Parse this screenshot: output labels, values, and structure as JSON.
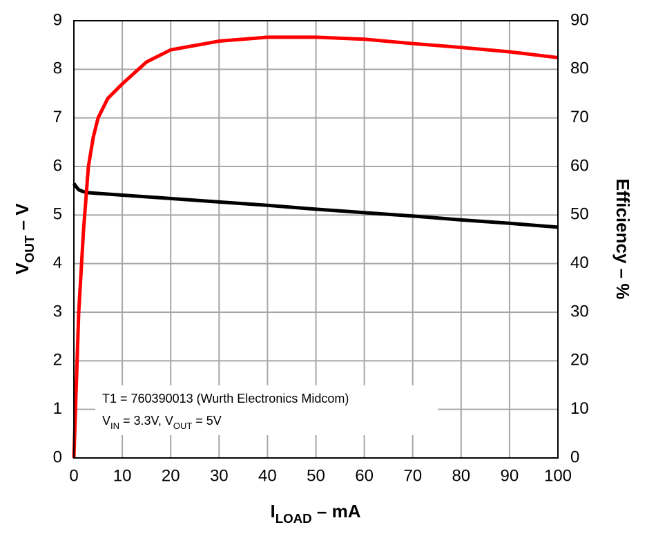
{
  "chart_data": {
    "type": "line",
    "xlabel": [
      {
        "text": "I"
      },
      {
        "text": "LOAD",
        "sub": true
      },
      {
        "text": " – mA"
      }
    ],
    "ylabel": [
      {
        "text": "V"
      },
      {
        "text": "OUT",
        "sub": true
      },
      {
        "text": " – V"
      }
    ],
    "y2label": [
      {
        "text": "Efficiency – %"
      }
    ],
    "annotations": [
      [
        {
          "text": "T1 = 760390013 (Wurth Electronics Midcom)"
        }
      ],
      [
        {
          "text": "V"
        },
        {
          "text": "IN",
          "sub": true
        },
        {
          "text": " = 3.3V, V"
        },
        {
          "text": "OUT",
          "sub": true
        },
        {
          "text": " = 5V"
        }
      ]
    ],
    "xlim": [
      0,
      100
    ],
    "xticks": [
      0,
      10,
      20,
      30,
      40,
      50,
      60,
      70,
      80,
      90,
      100
    ],
    "ylim": [
      0,
      9
    ],
    "yticks": [
      0,
      1,
      2,
      3,
      4,
      5,
      6,
      7,
      8,
      9
    ],
    "y2lim": [
      0,
      90
    ],
    "y2ticks": [
      0,
      10,
      20,
      30,
      40,
      50,
      60,
      70,
      80,
      90
    ],
    "grid": true,
    "y2label_color": "#ff0000",
    "series": [
      {
        "color": "#000000",
        "x": [
          0,
          0.5,
          1,
          2,
          3,
          10,
          20,
          30,
          40,
          50,
          60,
          70,
          80,
          90,
          100
        ],
        "values": [
          5.65,
          5.58,
          5.52,
          5.48,
          5.46,
          5.41,
          5.34,
          5.27,
          5.2,
          5.12,
          5.05,
          4.98,
          4.9,
          4.83,
          4.75
        ]
      },
      {
        "color": "#ff0000",
        "axis": "y2",
        "x": [
          0,
          0.5,
          1,
          2,
          3,
          4,
          5,
          7,
          10,
          15,
          20,
          30,
          40,
          50,
          60,
          70,
          80,
          90,
          100
        ],
        "values": [
          0,
          15,
          30,
          47,
          60,
          66,
          70,
          74,
          77,
          81.5,
          84,
          85.8,
          86.6,
          86.6,
          86.2,
          85.3,
          84.5,
          83.6,
          82.4
        ]
      }
    ]
  }
}
